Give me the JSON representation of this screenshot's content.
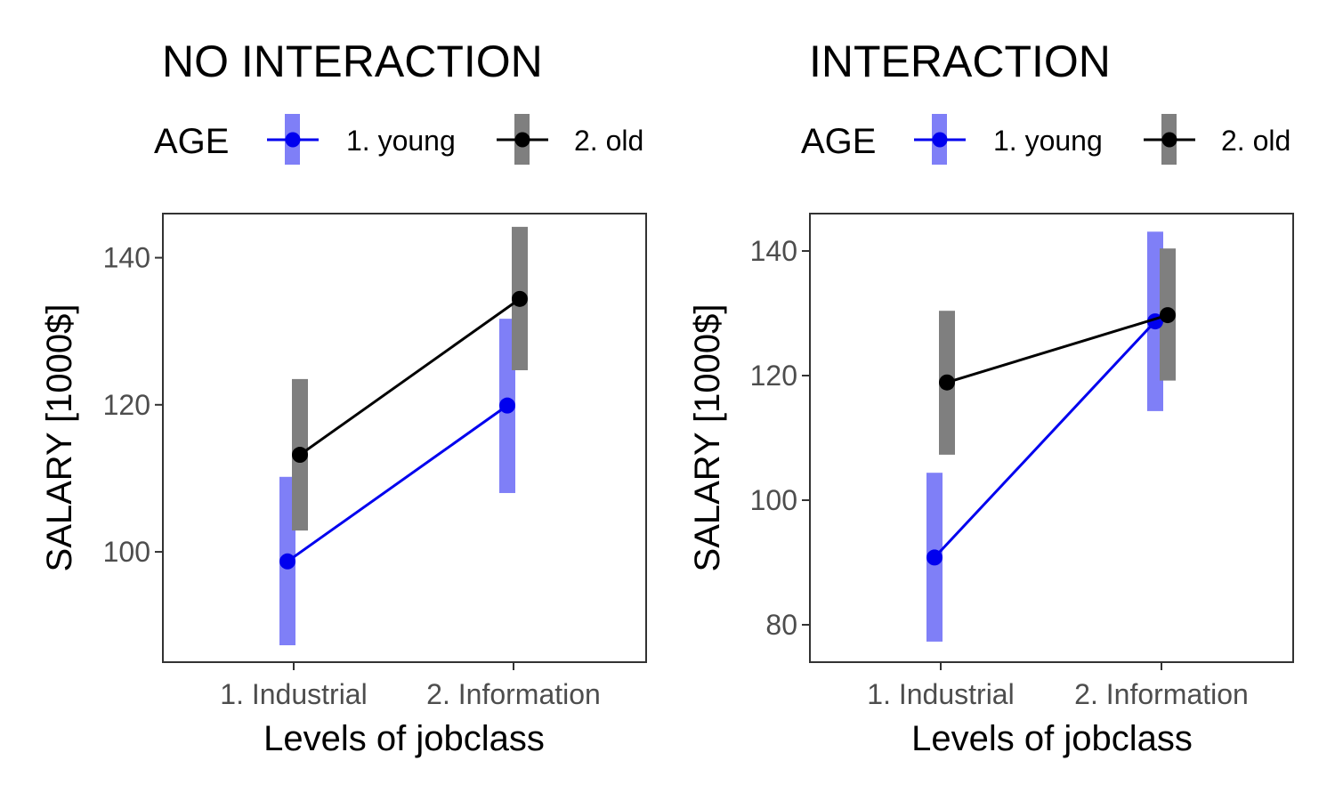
{
  "chart_data": [
    {
      "type": "line",
      "title": "NO INTERACTION",
      "xlabel": "Levels of jobclass",
      "ylabel": "SALARY [1000$]",
      "categories": [
        "1. Industrial",
        "2. Information"
      ],
      "ylim": [
        85,
        146
      ],
      "yticks": [
        100,
        120,
        140
      ],
      "grid": false,
      "legend": {
        "title": "AGE",
        "position": "top",
        "items": [
          "1. young",
          "2. old"
        ]
      },
      "series": [
        {
          "name": "1. young",
          "color": "#0000ee",
          "band_color": "#7f7ff7",
          "values": [
            98.7,
            119.9
          ],
          "lower": [
            87.3,
            108.0
          ],
          "upper": [
            110.2,
            131.7
          ]
        },
        {
          "name": "2. old",
          "color": "#000000",
          "band_color": "#7f7f7f",
          "values": [
            113.2,
            134.4
          ],
          "lower": [
            102.9,
            124.7
          ],
          "upper": [
            123.5,
            144.2
          ]
        }
      ]
    },
    {
      "type": "line",
      "title": "INTERACTION",
      "xlabel": "Levels of jobclass",
      "ylabel": "SALARY [1000$]",
      "categories": [
        "1. Industrial",
        "2. Information"
      ],
      "ylim": [
        74,
        146
      ],
      "yticks": [
        80,
        100,
        120,
        140
      ],
      "grid": false,
      "legend": {
        "title": "AGE",
        "position": "top",
        "items": [
          "1. young",
          "2. old"
        ]
      },
      "series": [
        {
          "name": "1. young",
          "color": "#0000ee",
          "band_color": "#7f7ff7",
          "values": [
            90.8,
            128.7
          ],
          "lower": [
            77.3,
            114.3
          ],
          "upper": [
            104.4,
            143.1
          ]
        },
        {
          "name": "2. old",
          "color": "#000000",
          "band_color": "#7f7f7f",
          "values": [
            118.9,
            129.7
          ],
          "lower": [
            107.3,
            119.2
          ],
          "upper": [
            130.4,
            140.4
          ]
        }
      ]
    }
  ]
}
